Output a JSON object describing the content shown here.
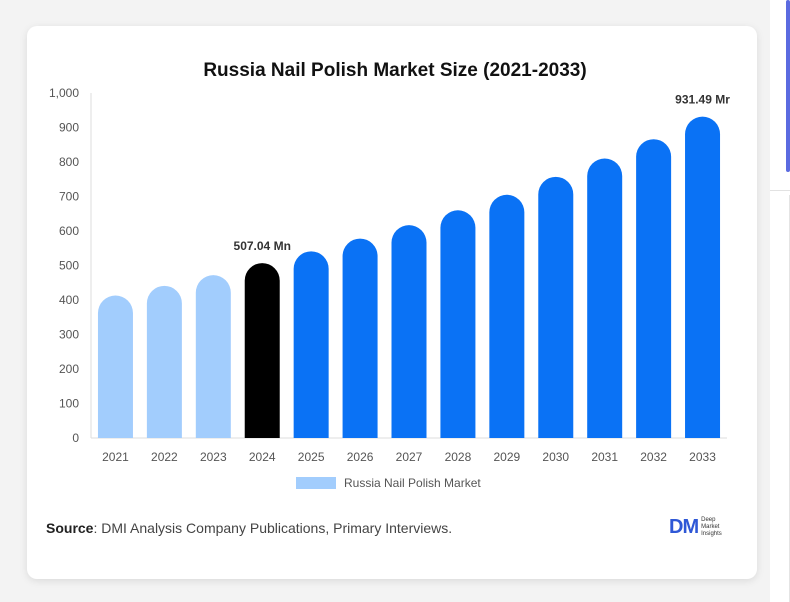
{
  "chart_data": {
    "type": "bar",
    "title": "Russia Nail Polish Market Size (2021-2033)",
    "categories": [
      "2021",
      "2022",
      "2023",
      "2024",
      "2025",
      "2026",
      "2027",
      "2028",
      "2029",
      "2030",
      "2031",
      "2032",
      "2033"
    ],
    "series": [
      {
        "name": "Russia Nail Polish Market",
        "values": [
          413,
          441,
          472,
          507.04,
          541,
          578,
          617,
          660,
          705,
          757,
          810,
          866,
          931.49
        ]
      }
    ],
    "ylim": [
      0,
      1000
    ],
    "yticks": [
      "0",
      "100",
      "200",
      "300",
      "400",
      "500",
      "600",
      "700",
      "800",
      "900",
      "1,000"
    ],
    "annotations": [
      {
        "category": "2024",
        "text": "507.04 Mn"
      },
      {
        "category": "2033",
        "text": "931.49 Mr"
      }
    ],
    "bar_colors": {
      "historical": "#a2cdfd",
      "base_year": "#000000",
      "forecast": "#0a72f5"
    },
    "grid": false,
    "legend_position": "bottom"
  },
  "legend": {
    "label": "Russia Nail Polish Market"
  },
  "source": {
    "label": "Source",
    "text": ": DMI Analysis Company Publications, Primary Interviews."
  },
  "logo": {
    "mark": "DM",
    "line1": "Deep",
    "line2": "Market",
    "line3": "Insights"
  }
}
